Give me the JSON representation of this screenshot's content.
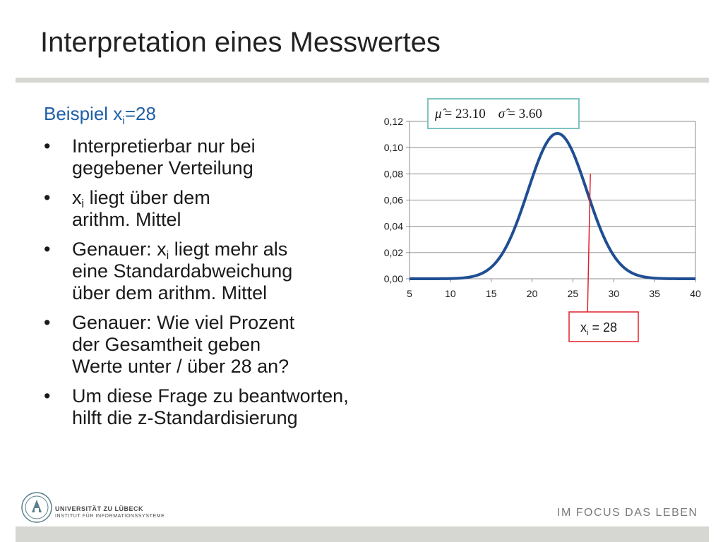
{
  "slide": {
    "title": "Interpretation eines Messwertes",
    "heading_prefix": "Beispiel x",
    "heading_sub": "i",
    "heading_suffix": "=28",
    "bullets": [
      {
        "lines": [
          {
            "pre": "Interpretierbar nur bei"
          },
          {
            "pre": "gegebener Verteilung"
          }
        ]
      },
      {
        "lines": [
          {
            "pre": "x",
            "sub": "i",
            "post": " liegt über dem"
          },
          {
            "pre": "arithm. Mittel"
          }
        ]
      },
      {
        "lines": [
          {
            "pre": "Genauer: x",
            "sub": "i",
            "post": " liegt mehr als"
          },
          {
            "pre": "eine Standardabweichung"
          },
          {
            "pre": "über dem arithm. Mittel"
          }
        ]
      },
      {
        "lines": [
          {
            "pre": "Genauer: Wie viel Prozent"
          },
          {
            "pre": "der Gesamtheit geben"
          },
          {
            "pre": "Werte unter / über 28 an?"
          }
        ]
      },
      {
        "lines": [
          {
            "pre": "Um diese Frage zu beantworten,"
          },
          {
            "pre": "hilft die z-Standardisierung"
          }
        ]
      }
    ],
    "bullet_symbol": "•"
  },
  "chart_data": {
    "type": "line",
    "title": "",
    "xlabel": "",
    "ylabel": "",
    "xlim": [
      5,
      40
    ],
    "ylim": [
      0,
      0.12
    ],
    "x_ticks": [
      "5",
      "10",
      "15",
      "20",
      "25",
      "30",
      "35",
      "40"
    ],
    "y_ticks": [
      "0,00",
      "0,02",
      "0,04",
      "0,06",
      "0,08",
      "0,10",
      "0,12"
    ],
    "grid": true,
    "series": [
      {
        "distribution": "normal",
        "mean": 23.1,
        "sd": 3.6,
        "color": "#1f4e93"
      }
    ],
    "marker_x": 28,
    "marker_color": "#e0202a",
    "formula_text": {
      "mu": "μ̂",
      "mu_value": "= 23.10",
      "sigma": "σ̂",
      "sigma_value": "= 3.60"
    },
    "formula_border_color": "#7fc3c3",
    "callout": {
      "pre": "x",
      "sub": "i",
      "post": " = 28"
    },
    "callout_border_color": "#e0202a"
  },
  "footer": {
    "university": "UNIVERSITÄT ZU LÜBECK",
    "institute": "INSTITUT FÜR INFORMATIONSSYSTEME",
    "slogan": "IM FOCUS DAS LEBEN"
  }
}
